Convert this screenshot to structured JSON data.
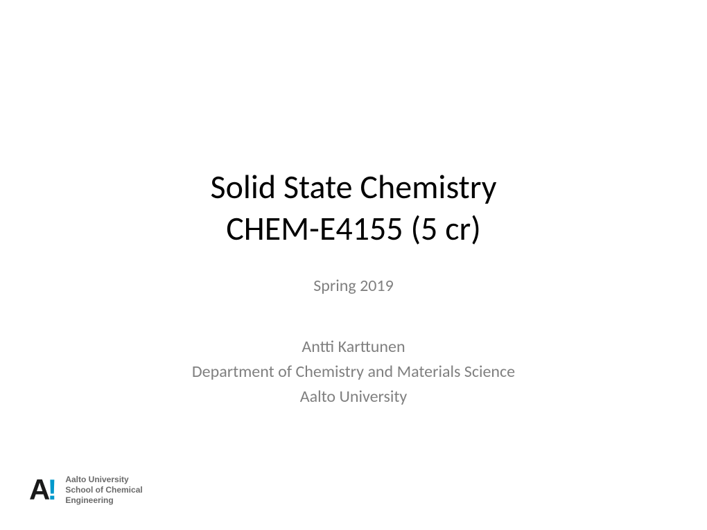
{
  "slide": {
    "title_line1": "Solid State Chemistry",
    "title_line2": "CHEM-E4155 (5 cr)",
    "subtitle": "Spring 2019",
    "author": "Antti Karttunen",
    "department": "Department of Chemistry and Materials Science",
    "university": "Aalto University"
  },
  "logo": {
    "letter_a": "A",
    "exclaim": "!",
    "text_line1": "Aalto University",
    "text_line2": "School of Chemical",
    "text_line3": "Engineering",
    "a_color": "#1a1a1a",
    "exclaim_color": "#0099cc",
    "text_color": "#6a6a6a"
  },
  "styling": {
    "background_color": "#ffffff",
    "title_color": "#000000",
    "title_fontsize": 48,
    "subtitle_color": "#808080",
    "subtitle_fontsize": 24,
    "font_family": "Calibri"
  }
}
